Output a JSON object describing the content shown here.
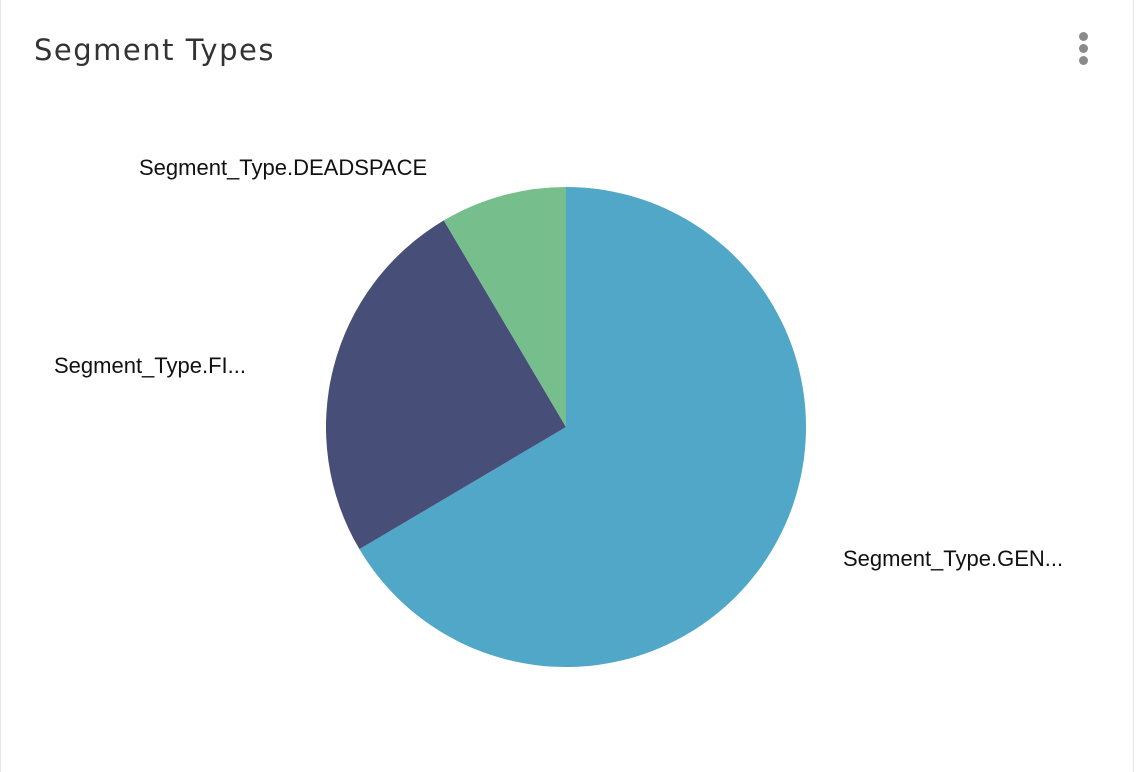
{
  "header": {
    "title": "Segment Types",
    "menu_icon": "more-vertical-icon"
  },
  "chart_data": {
    "type": "pie",
    "title": "Segment Types",
    "legend": "none",
    "start_angle": "12 o'clock, clockwise",
    "slices": [
      {
        "label": "Segment_Type.GEN...",
        "value": 66.5,
        "color": "#51A7C7"
      },
      {
        "label": "Segment_Type.FI...",
        "value": 25.0,
        "color": "#474F79"
      },
      {
        "label": "Segment_Type.DEADSPACE",
        "value": 8.5,
        "color": "#76BF8C"
      }
    ]
  }
}
